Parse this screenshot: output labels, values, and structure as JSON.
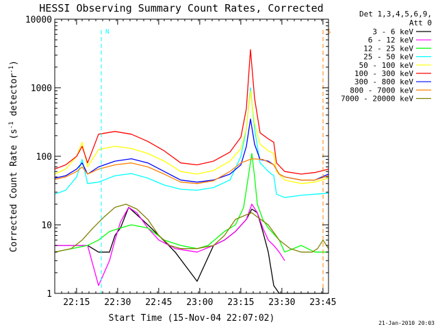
{
  "chart_data": {
    "type": "line",
    "title": "HESSI Observing Summary Count Rates, Corrected",
    "xlabel": "Start Time (15-Nov-04 22:07:02)",
    "ylabel_prefix": "Corrected Count Rate (s",
    "ylabel_exp1": "-1",
    "ylabel_mid": " detector",
    "ylabel_exp2": "-1",
    "ylabel_suffix": ")",
    "y_scale": "log",
    "ylim": [
      1,
      10000
    ],
    "xlim_minutes": [
      0,
      100
    ],
    "x_ticks": [
      {
        "label": "22:15",
        "t": 7.97
      },
      {
        "label": "22:30",
        "t": 22.97
      },
      {
        "label": "22:45",
        "t": 37.97
      },
      {
        "label": "23:00",
        "t": 52.97
      },
      {
        "label": "23:15",
        "t": 67.97
      },
      {
        "label": "23:30",
        "t": 82.97
      },
      {
        "label": "23:45",
        "t": 97.97
      }
    ],
    "y_ticks": [
      {
        "label": "1",
        "v": 1
      },
      {
        "label": "10",
        "v": 10
      },
      {
        "label": "100",
        "v": 100
      },
      {
        "label": "1000",
        "v": 1000
      },
      {
        "label": "10000",
        "v": 10000
      }
    ],
    "legend_header": [
      "Det 1,3,4,5,6,9,",
      "Att 0"
    ],
    "legend_position": "right",
    "series": [
      {
        "name": "3 - 6 keV",
        "color": "#000000",
        "x": [
          0,
          12,
          16,
          20,
          22,
          24,
          27,
          30,
          34,
          38,
          44,
          52,
          58,
          62,
          66,
          70,
          72,
          74,
          76,
          78,
          80,
          82,
          100
        ],
        "y": [
          5,
          5,
          4,
          4,
          7,
          9,
          18,
          14,
          10,
          7,
          4,
          1.5,
          5,
          6,
          8,
          12,
          17,
          15,
          8,
          4,
          1.3,
          1,
          1
        ]
      },
      {
        "name": "6 - 12 keV",
        "color": "#ff00ff",
        "x": [
          0,
          12,
          16,
          20,
          22,
          24,
          27,
          30,
          34,
          38,
          44,
          52,
          58,
          62,
          66,
          70,
          72,
          74,
          76,
          78,
          80,
          82,
          84
        ],
        "y": [
          5,
          5,
          1.3,
          3,
          6,
          11,
          18,
          15,
          9,
          6,
          4.5,
          4,
          5,
          6,
          8,
          12,
          20,
          15,
          9,
          6,
          5,
          4,
          3
        ]
      },
      {
        "name": "12 - 25 keV",
        "color": "#00ff00",
        "x": [
          0,
          12,
          16,
          20,
          24,
          28,
          34,
          40,
          46,
          52,
          56,
          62,
          66,
          69,
          71,
          72,
          73,
          74,
          76,
          78,
          82,
          84,
          90,
          95,
          100
        ],
        "y": [
          4,
          5,
          6,
          8,
          9,
          10,
          9,
          6,
          5,
          4.5,
          5,
          8,
          10,
          18,
          60,
          110,
          50,
          20,
          12,
          9,
          6,
          4,
          5,
          4,
          4
        ]
      },
      {
        "name": "25 - 50 keV",
        "color": "#00ffff",
        "x": [
          0,
          4,
          8,
          10,
          12,
          16,
          22,
          28,
          34,
          40,
          46,
          52,
          58,
          64,
          68,
          70,
          71.5,
          73,
          75,
          78,
          80,
          81,
          84,
          90,
          95,
          100
        ],
        "y": [
          28,
          32,
          50,
          90,
          40,
          42,
          52,
          56,
          48,
          38,
          33,
          32,
          35,
          45,
          100,
          250,
          1000,
          250,
          80,
          60,
          52,
          28,
          25,
          27,
          28,
          29
        ]
      },
      {
        "name": "50 - 100 keV",
        "color": "#ffff00",
        "x": [
          0,
          4,
          8,
          10,
          12,
          16,
          22,
          28,
          34,
          40,
          46,
          52,
          58,
          64,
          68,
          70,
          71.5,
          73,
          75,
          78,
          80,
          81,
          84,
          90,
          95,
          100
        ],
        "y": [
          55,
          65,
          100,
          160,
          70,
          125,
          140,
          130,
          110,
          85,
          60,
          55,
          62,
          85,
          130,
          250,
          900,
          300,
          150,
          120,
          110,
          60,
          45,
          40,
          42,
          48
        ]
      },
      {
        "name": "100 - 300 keV",
        "color": "#ff0000",
        "x": [
          0,
          4,
          8,
          10,
          12,
          16,
          22,
          28,
          34,
          40,
          46,
          52,
          58,
          64,
          68,
          70,
          71.5,
          73,
          75,
          78,
          80,
          81,
          84,
          90,
          95,
          100
        ],
        "y": [
          65,
          75,
          100,
          140,
          80,
          210,
          230,
          210,
          165,
          120,
          80,
          75,
          85,
          115,
          190,
          500,
          3600,
          700,
          220,
          180,
          160,
          80,
          60,
          55,
          58,
          65
        ]
      },
      {
        "name": "300 - 800 keV",
        "color": "#0000ff",
        "x": [
          0,
          4,
          8,
          10,
          12,
          16,
          22,
          28,
          34,
          40,
          46,
          52,
          58,
          64,
          68,
          70,
          71.5,
          73,
          75,
          78,
          80,
          82,
          84,
          90,
          95,
          100
        ],
        "y": [
          48,
          52,
          65,
          80,
          55,
          70,
          85,
          92,
          80,
          60,
          45,
          42,
          45,
          55,
          75,
          140,
          350,
          150,
          90,
          85,
          75,
          55,
          50,
          45,
          45,
          55
        ]
      },
      {
        "name": "800 - 7000 keV",
        "color": "#ff8000",
        "x": [
          0,
          4,
          8,
          10,
          12,
          16,
          22,
          28,
          34,
          40,
          46,
          52,
          58,
          64,
          68,
          72,
          76,
          80,
          82,
          84,
          90,
          95,
          100
        ],
        "y": [
          46,
          50,
          60,
          70,
          55,
          65,
          75,
          80,
          70,
          55,
          42,
          40,
          44,
          60,
          80,
          92,
          90,
          75,
          55,
          50,
          45,
          45,
          52
        ]
      },
      {
        "name": "7000 - 20000 keV",
        "color": "#808000",
        "x": [
          0,
          6,
          10,
          14,
          18,
          22,
          26,
          30,
          34,
          38,
          42,
          46,
          52,
          58,
          62,
          66,
          70,
          72,
          74,
          78,
          82,
          86,
          90,
          94,
          96,
          98,
          100
        ],
        "y": [
          4,
          4.5,
          6,
          9,
          13,
          18,
          20,
          17,
          12,
          7,
          5,
          4.5,
          4.5,
          5,
          7,
          12,
          14,
          15,
          13,
          10,
          6,
          4.5,
          4,
          4,
          4.5,
          6,
          4.5
        ]
      }
    ],
    "attenuator_markers": [
      {
        "t": 17,
        "label": "N",
        "color": "#00ffff"
      },
      {
        "t": 98,
        "label": "S",
        "color": "#ff8000"
      }
    ],
    "footer_timestamp": "21-Jan-2010 20:03"
  }
}
